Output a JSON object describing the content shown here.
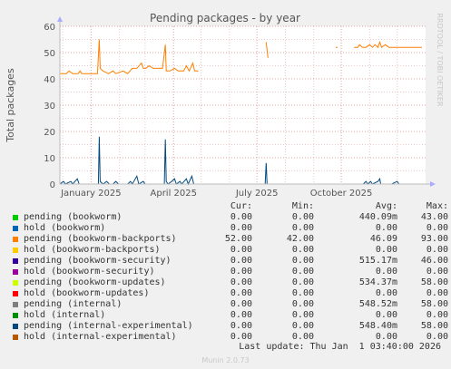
{
  "chart_data": {
    "type": "line",
    "title": "Pending packages - by year",
    "ylabel": "Total packages",
    "xlabel": "",
    "ylim": [
      0,
      60
    ],
    "y_ticks": [
      "0",
      "10",
      "20",
      "30",
      "40",
      "50",
      "60"
    ],
    "x_ticks": [
      "January 2025",
      "April 2025",
      "July 2025",
      "October 2025"
    ],
    "x_range": [
      "2024-11-28",
      "2026-01-01"
    ],
    "grid": true,
    "side_label": "RRDTOOL / TOBI OETIKER",
    "legend_headers": {
      "cur": "Cur:",
      "min": "Min:",
      "avg": "Avg:",
      "max": "Max:"
    },
    "series": [
      {
        "name": "pending (bookworm)",
        "color": "#00cc00",
        "cur": "0.00",
        "min": "0.00",
        "avg": "440.09m",
        "max": "43.00",
        "points": [
          [
            "2024-11-28",
            0
          ],
          [
            "2025-06-20",
            0
          ],
          [
            "2025-07-13",
            0
          ],
          [
            "2025-12-28",
            0
          ]
        ]
      },
      {
        "name": "hold (bookworm)",
        "color": "#0066b3",
        "cur": "0.00",
        "min": "0.00",
        "avg": "0.00",
        "max": "0.00",
        "points": []
      },
      {
        "name": "pending (bookworm-backports)",
        "color": "#ff8000",
        "cur": "52.00",
        "min": "42.00",
        "avg": "46.09",
        "max": "93.00",
        "points": [
          [
            "2024-11-28",
            42
          ],
          [
            "2024-12-05",
            42
          ],
          [
            "2024-12-08",
            43
          ],
          [
            "2024-12-12",
            42
          ],
          [
            "2024-12-18",
            42
          ],
          [
            "2024-12-20",
            43
          ],
          [
            "2024-12-22",
            42
          ],
          [
            "2025-01-01",
            42
          ],
          [
            "2025-01-08",
            42
          ],
          [
            "2025-01-10",
            55
          ],
          [
            "2025-01-11",
            44
          ],
          [
            "2025-01-14",
            43
          ],
          [
            "2025-01-20",
            42
          ],
          [
            "2025-01-25",
            43
          ],
          [
            "2025-01-28",
            42
          ],
          [
            "2025-02-05",
            43
          ],
          [
            "2025-02-10",
            42
          ],
          [
            "2025-02-15",
            44
          ],
          [
            "2025-02-20",
            44
          ],
          [
            "2025-02-25",
            46
          ],
          [
            "2025-02-27",
            44
          ],
          [
            "2025-03-02",
            44
          ],
          [
            "2025-03-05",
            45
          ],
          [
            "2025-03-10",
            44
          ],
          [
            "2025-03-15",
            44
          ],
          [
            "2025-03-20",
            44
          ],
          [
            "2025-03-23",
            53
          ],
          [
            "2025-03-24",
            43
          ],
          [
            "2025-03-28",
            43
          ],
          [
            "2025-04-02",
            44
          ],
          [
            "2025-04-06",
            43
          ],
          [
            "2025-04-12",
            43
          ],
          [
            "2025-04-15",
            45
          ],
          [
            "2025-04-18",
            43
          ],
          [
            "2025-04-22",
            46
          ],
          [
            "2025-04-24",
            43
          ],
          [
            "2025-04-28",
            43
          ],
          null,
          [
            "2025-07-11",
            54
          ],
          [
            "2025-07-13",
            48
          ],
          null,
          [
            "2025-09-25",
            52
          ],
          [
            "2025-09-27",
            52
          ],
          null,
          [
            "2025-10-15",
            52
          ],
          [
            "2025-10-19",
            52
          ],
          [
            "2025-10-21",
            53
          ],
          [
            "2025-10-24",
            52
          ],
          [
            "2025-10-28",
            52
          ],
          [
            "2025-11-01",
            53
          ],
          [
            "2025-11-04",
            52
          ],
          [
            "2025-11-07",
            53
          ],
          [
            "2025-11-10",
            52
          ],
          [
            "2025-11-12",
            54
          ],
          [
            "2025-11-14",
            52
          ],
          [
            "2025-11-18",
            53
          ],
          [
            "2025-11-22",
            52
          ],
          [
            "2025-12-01",
            52
          ],
          [
            "2025-12-28",
            52
          ]
        ]
      },
      {
        "name": "hold (bookworm-backports)",
        "color": "#ffcc00",
        "cur": "0.00",
        "min": "0.00",
        "avg": "0.00",
        "max": "0.00",
        "points": []
      },
      {
        "name": "pending (bookworm-security)",
        "color": "#330099",
        "cur": "0.00",
        "min": "0.00",
        "avg": "515.17m",
        "max": "46.00",
        "points": []
      },
      {
        "name": "hold (bookworm-security)",
        "color": "#990099",
        "cur": "0.00",
        "min": "0.00",
        "avg": "0.00",
        "max": "0.00",
        "points": []
      },
      {
        "name": "pending (bookworm-updates)",
        "color": "#ccff00",
        "cur": "0.00",
        "min": "0.00",
        "avg": "534.37m",
        "max": "58.00",
        "points": []
      },
      {
        "name": "hold (bookworm-updates)",
        "color": "#ff0000",
        "cur": "0.00",
        "min": "0.00",
        "avg": "0.00",
        "max": "0.00",
        "points": []
      },
      {
        "name": "pending (internal)",
        "color": "#808080",
        "cur": "0.00",
        "min": "0.00",
        "avg": "548.52m",
        "max": "58.00",
        "points": []
      },
      {
        "name": "hold (internal)",
        "color": "#008f00",
        "cur": "0.00",
        "min": "0.00",
        "avg": "0.00",
        "max": "0.00",
        "points": []
      },
      {
        "name": "pending (internal-experimental)",
        "color": "#00487d",
        "cur": "0.00",
        "min": "0.00",
        "avg": "548.40m",
        "max": "58.00",
        "points": [
          [
            "2024-11-28",
            0
          ],
          [
            "2024-12-02",
            1
          ],
          [
            "2024-12-04",
            0
          ],
          [
            "2024-12-10",
            1
          ],
          [
            "2024-12-12",
            0
          ],
          [
            "2024-12-17",
            2
          ],
          [
            "2024-12-19",
            0
          ],
          [
            "2025-01-01",
            0
          ],
          [
            "2025-01-09",
            0
          ],
          [
            "2025-01-10",
            18
          ],
          [
            "2025-01-11",
            1
          ],
          [
            "2025-01-14",
            0
          ],
          [
            "2025-01-18",
            1
          ],
          [
            "2025-01-21",
            0
          ],
          [
            "2025-01-25",
            0
          ],
          [
            "2025-01-28",
            1
          ],
          [
            "2025-01-31",
            0
          ],
          [
            "2025-02-10",
            0
          ],
          [
            "2025-02-13",
            1
          ],
          [
            "2025-02-15",
            0
          ],
          [
            "2025-02-20",
            3
          ],
          [
            "2025-02-22",
            0
          ],
          [
            "2025-02-27",
            1
          ],
          [
            "2025-03-01",
            0
          ],
          [
            "2025-03-10",
            0
          ],
          [
            "2025-03-14",
            0
          ],
          [
            "2025-03-22",
            0
          ],
          [
            "2025-03-23",
            17
          ],
          [
            "2025-03-24",
            1
          ],
          [
            "2025-03-26",
            0
          ],
          [
            "2025-03-30",
            1
          ],
          [
            "2025-04-02",
            2
          ],
          [
            "2025-04-04",
            0
          ],
          [
            "2025-04-08",
            1
          ],
          [
            "2025-04-10",
            0
          ],
          [
            "2025-04-15",
            2
          ],
          [
            "2025-04-17",
            0
          ],
          [
            "2025-04-21",
            3
          ],
          [
            "2025-04-23",
            0
          ],
          [
            "2025-04-28",
            0
          ],
          [
            "2025-07-10",
            0
          ],
          [
            "2025-07-11",
            8
          ],
          [
            "2025-07-12",
            0
          ],
          [
            "2025-10-25",
            0
          ],
          [
            "2025-10-28",
            1
          ],
          [
            "2025-10-30",
            0
          ],
          [
            "2025-11-02",
            1
          ],
          [
            "2025-11-04",
            0
          ],
          [
            "2025-11-10",
            1
          ],
          [
            "2025-11-12",
            2
          ],
          [
            "2025-11-13",
            0
          ],
          [
            "2025-11-25",
            0
          ],
          [
            "2025-12-01",
            1
          ],
          [
            "2025-12-03",
            0
          ],
          [
            "2025-12-28",
            0
          ]
        ]
      },
      {
        "name": "hold (internal-experimental)",
        "color": "#b35a00",
        "cur": "0.00",
        "min": "0.00",
        "avg": "0.00",
        "max": "0.00",
        "points": []
      }
    ]
  },
  "footer": {
    "last_update": "Last update: Thu Jan  1 03:40:00 2026",
    "version": "Munin 2.0.73"
  }
}
